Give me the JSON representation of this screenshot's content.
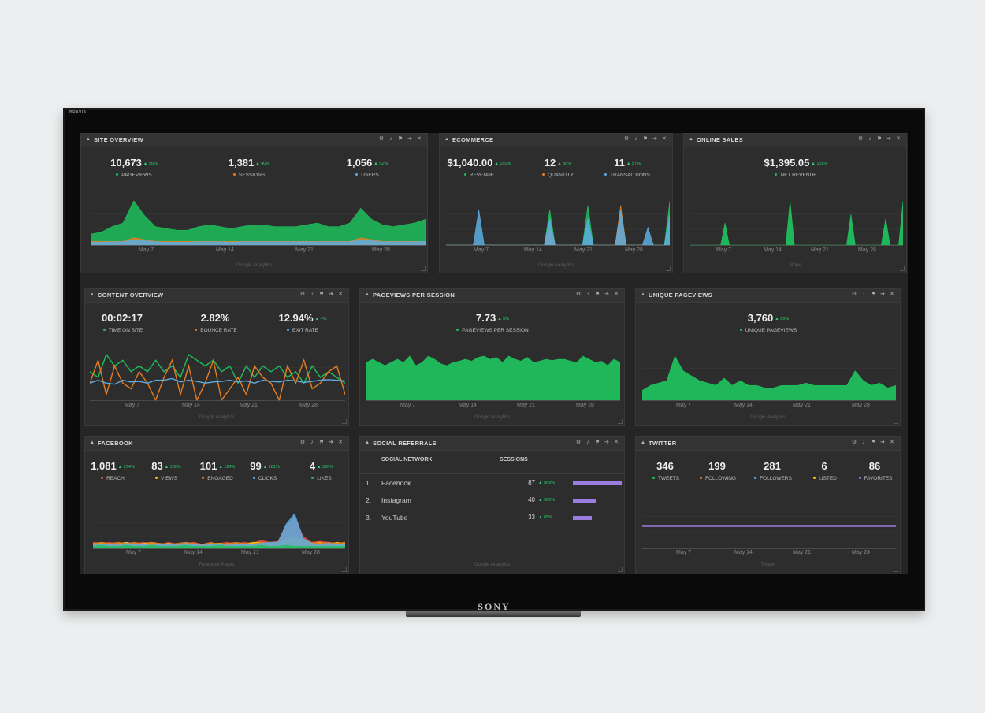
{
  "tv": {
    "brand_top": "BRAVIA",
    "brand_bottom": "SONY"
  },
  "colors": {
    "green": "#1fbf5c",
    "orange": "#e67e22",
    "blue": "#5dade2",
    "yellow": "#f1c40f",
    "purple": "#9b7de0",
    "red": "#e74c3c"
  },
  "icons": [
    "gear-icon",
    "bell-icon",
    "flag-icon",
    "arrow-right-icon",
    "close-icon"
  ],
  "site_overview": {
    "title": "SITE OVERVIEW",
    "metrics": [
      {
        "value": "10,673",
        "change": "▲ 56%",
        "label": "PAGEVIEWS"
      },
      {
        "value": "1,381",
        "change": "▲ 40%",
        "label": "SESSIONS"
      },
      {
        "value": "1,056",
        "change": "▲ 52%",
        "label": "USERS"
      }
    ],
    "x_ticks": [
      "May 7",
      "May 14",
      "May 21",
      "May 28"
    ],
    "source": "Google Analytics"
  },
  "ecommerce": {
    "title": "ECOMMERCE",
    "metrics": [
      {
        "value": "$1,040.00",
        "change": "▲ 150%",
        "label": "REVENUE"
      },
      {
        "value": "12",
        "change": "▲ 50%",
        "label": "QUANTITY"
      },
      {
        "value": "11",
        "change": "▲ 57%",
        "label": "TRANSACTIONS"
      }
    ],
    "x_ticks": [
      "May 7",
      "May 14",
      "May 21",
      "May 28"
    ],
    "source": "Google Analytics"
  },
  "online_sales": {
    "title": "ONLINE SALES",
    "metrics": [
      {
        "value": "$1,395.05",
        "change": "▲ 155%",
        "label": "NET REVENUE"
      }
    ],
    "x_ticks": [
      "May 7",
      "May 14",
      "May 21",
      "May 28"
    ],
    "source": "Stripe"
  },
  "content_overview": {
    "title": "CONTENT OVERVIEW",
    "metrics": [
      {
        "value": "00:02:17",
        "change": "",
        "label": "TIME ON SITE"
      },
      {
        "value": "2.82%",
        "change": "",
        "label": "BOUNCE RATE"
      },
      {
        "value": "12.94%",
        "change": "▲ 4%",
        "label": "EXIT RATE"
      }
    ],
    "x_ticks": [
      "May 7",
      "May 14",
      "May 21",
      "May 28"
    ],
    "source": "Google Analytics"
  },
  "pageviews_per_session": {
    "title": "PAGEVIEWS PER SESSION",
    "metrics": [
      {
        "value": "7.73",
        "change": "▲ 5%",
        "label": "PAGEVIEWS PER SESSION"
      }
    ],
    "x_ticks": [
      "May 7",
      "May 14",
      "May 21",
      "May 28"
    ],
    "source": "Google Analytics"
  },
  "unique_pageviews": {
    "title": "UNIQUE PAGEVIEWS",
    "metrics": [
      {
        "value": "3,760",
        "change": "▲ 60%",
        "label": "UNIQUE PAGEVIEWS"
      }
    ],
    "x_ticks": [
      "May 7",
      "May 14",
      "May 21",
      "May 28"
    ],
    "source": "Google Analytics"
  },
  "facebook": {
    "title": "FACEBOOK",
    "metrics": [
      {
        "value": "1,081",
        "change": "▲ 274%",
        "label": "REACH"
      },
      {
        "value": "83",
        "change": "▲ 160%",
        "label": "VIEWS"
      },
      {
        "value": "101",
        "change": "▲ 124%",
        "label": "ENGAGED"
      },
      {
        "value": "99",
        "change": "▲ 181%",
        "label": "CLICKS"
      },
      {
        "value": "4",
        "change": "▲ 300%",
        "label": "LIKES"
      }
    ],
    "x_ticks": [
      "May 7",
      "May 14",
      "May 21",
      "May 28"
    ],
    "source": "Facebook Pages"
  },
  "social_referrals": {
    "title": "SOCIAL REFERRALS",
    "col_network": "SOCIAL NETWORK",
    "col_sessions": "SESSIONS",
    "rows": [
      {
        "n": "1.",
        "name": "Facebook",
        "value": "87",
        "change": "▲ 569%",
        "share": 1.0
      },
      {
        "n": "2.",
        "name": "Instagram",
        "value": "40",
        "change": "▲ 900%",
        "share": 0.46
      },
      {
        "n": "3.",
        "name": "YouTube",
        "value": "33",
        "change": "▲ 65%",
        "share": 0.38
      }
    ],
    "source": "Google Analytics"
  },
  "twitter": {
    "title": "TWITTER",
    "metrics": [
      {
        "value": "346",
        "change": "",
        "label": "TWEETS"
      },
      {
        "value": "199",
        "change": "",
        "label": "FOLLOWING"
      },
      {
        "value": "281",
        "change": "",
        "label": "FOLLOWERS"
      },
      {
        "value": "6",
        "change": "",
        "label": "LISTED"
      },
      {
        "value": "86",
        "change": "",
        "label": "FAVORITES"
      }
    ],
    "x_ticks": [
      "May 7",
      "May 14",
      "May 21",
      "May 28"
    ],
    "source": "Twitter"
  },
  "chart_data": [
    {
      "type": "area",
      "panel": "site_overview",
      "series": [
        {
          "name": "PAGEVIEWS",
          "color": "#1fbf5c",
          "values": [
            3,
            3.5,
            5,
            6,
            12,
            8,
            5,
            4.5,
            4,
            4,
            5,
            5.5,
            5,
            4.5,
            5,
            5.5,
            5.5,
            5,
            5,
            5,
            5.5,
            6,
            5,
            5,
            6,
            10,
            7,
            5.5,
            5,
            5.5,
            6,
            7
          ]
        },
        {
          "name": "SESSIONS",
          "color": "#e67e22",
          "values": [
            1,
            1,
            1,
            1,
            2,
            1.5,
            1,
            1,
            1,
            1,
            1,
            1,
            1,
            1,
            1,
            1,
            1,
            1,
            1,
            1,
            1,
            1,
            1,
            1,
            1,
            2,
            1.5,
            1,
            1,
            1,
            1,
            1
          ]
        },
        {
          "name": "USERS",
          "color": "#5dade2",
          "values": [
            0.8,
            0.8,
            0.9,
            0.9,
            1.5,
            1.2,
            0.9,
            0.8,
            0.8,
            0.8,
            0.9,
            0.9,
            0.9,
            0.8,
            0.9,
            0.9,
            0.9,
            0.9,
            0.9,
            0.9,
            0.9,
            0.9,
            0.9,
            0.9,
            0.9,
            1.5,
            1.2,
            0.9,
            0.9,
            0.9,
            0.9,
            1
          ]
        }
      ]
    },
    {
      "type": "area",
      "panel": "ecommerce",
      "series": [
        {
          "name": "REVENUE",
          "color": "#1fbf5c",
          "values": [
            0,
            0,
            0,
            0,
            0,
            0,
            0,
            0,
            0,
            0,
            0,
            0,
            0,
            0,
            0,
            0,
            0,
            0,
            0,
            8,
            0,
            0,
            0,
            0,
            0,
            0,
            9,
            0,
            0,
            0,
            0,
            0,
            0,
            0,
            0,
            0,
            0,
            0,
            0,
            0,
            0,
            10
          ]
        },
        {
          "name": "QUANTITY",
          "color": "#e67e22",
          "values": [
            0,
            0,
            0,
            0,
            0,
            0,
            0,
            0,
            0,
            0,
            0,
            0,
            0,
            0,
            0,
            0,
            0,
            0,
            0,
            4,
            0,
            0,
            0,
            0,
            0,
            0,
            0,
            0,
            0,
            0,
            0,
            0,
            9,
            0,
            0,
            0,
            0,
            0,
            0,
            0,
            0,
            0
          ]
        },
        {
          "name": "TRANSACTIONS",
          "color": "#5dade2",
          "values": [
            0,
            0,
            0,
            0,
            0,
            0,
            8,
            0,
            0,
            0,
            0,
            0,
            0,
            0,
            0,
            0,
            0,
            0,
            0,
            6,
            0,
            0,
            0,
            0,
            0,
            0,
            6,
            0,
            0,
            0,
            0,
            0,
            8,
            0,
            0,
            0,
            0,
            4,
            0,
            0,
            0,
            7
          ]
        }
      ]
    },
    {
      "type": "area",
      "panel": "online_sales",
      "series": [
        {
          "name": "NET REVENUE",
          "color": "#1fbf5c",
          "values": [
            0,
            0,
            0,
            0,
            0,
            0,
            0,
            0,
            5,
            0,
            0,
            0,
            0,
            0,
            0,
            0,
            0,
            0,
            0,
            0,
            0,
            0,
            0,
            10,
            0,
            0,
            0,
            0,
            0,
            0,
            0,
            0,
            0,
            0,
            0,
            0,
            0,
            7,
            0,
            0,
            0,
            0,
            0,
            0,
            0,
            6,
            0,
            0,
            0,
            10
          ]
        }
      ]
    },
    {
      "type": "line",
      "panel": "content_overview",
      "series": [
        {
          "name": "TIME ON SITE",
          "color": "#1fbf5c",
          "values": [
            5,
            4,
            8,
            6,
            7,
            5,
            6,
            5,
            7,
            5,
            6,
            4,
            8,
            7,
            6,
            7,
            5,
            6,
            3,
            6,
            4,
            6,
            5,
            6,
            4,
            5,
            3,
            6,
            4,
            5,
            4,
            3
          ]
        },
        {
          "name": "BOUNCE RATE",
          "color": "#e67e22",
          "values": [
            3,
            7,
            1,
            6,
            3,
            2,
            5,
            3,
            0,
            4,
            7,
            1,
            6,
            0,
            3,
            7,
            0,
            2,
            4,
            1,
            6,
            4,
            3,
            0,
            6,
            3,
            7,
            2,
            3,
            5,
            6,
            1
          ]
        },
        {
          "name": "EXIT RATE",
          "color": "#5dade2",
          "values": [
            3,
            3.5,
            3,
            2.8,
            3.5,
            3.2,
            3.3,
            3,
            3.5,
            3.5,
            3.8,
            3.2,
            3.5,
            3.3,
            3,
            3.2,
            3.3,
            3.5,
            3.2,
            3.4,
            3,
            3.5,
            3.3,
            3.2,
            3.5,
            3.4,
            3.1,
            3.3,
            3.5,
            3.6,
            3.5,
            3.4
          ]
        }
      ]
    },
    {
      "type": "area",
      "panel": "pageviews_per_session",
      "series": [
        {
          "name": "PAGEVIEWS PER SESSION",
          "color": "#1fbf5c",
          "values": [
            6,
            6.5,
            6,
            5.5,
            6,
            6.5,
            6,
            7,
            5.5,
            6,
            7,
            6.5,
            5.8,
            5.5,
            6,
            6.2,
            6.5,
            6.2,
            6.8,
            7,
            6.5,
            6.8,
            6,
            7,
            6.5,
            6.2,
            6.8,
            6,
            6.2,
            6.5,
            6.3,
            6.5,
            6.5,
            6.2,
            6,
            7,
            6.5,
            6,
            6.2,
            5.5,
            6.5,
            6
          ]
        }
      ]
    },
    {
      "type": "area",
      "panel": "unique_pageviews",
      "series": [
        {
          "name": "UNIQUE PAGEVIEWS",
          "color": "#1fbf5c",
          "values": [
            2,
            3,
            3.5,
            4,
            9,
            6,
            5,
            4,
            3.5,
            3,
            4.5,
            3,
            4,
            3,
            3,
            2.5,
            2.5,
            3,
            3,
            3,
            3.5,
            3,
            3,
            3,
            3,
            3,
            6,
            4,
            3,
            3.5,
            2.5,
            3
          ]
        }
      ]
    },
    {
      "type": "area",
      "panel": "facebook",
      "series": [
        {
          "name": "REACH",
          "color": "#e74c3c",
          "values": [
            3,
            2.5,
            3,
            2,
            3,
            2.5,
            3,
            2.5,
            2,
            3,
            2,
            2.5,
            3,
            2,
            2,
            2.5,
            3,
            2,
            3,
            2.5,
            4,
            3,
            3.5,
            11,
            15,
            6,
            3,
            3.5,
            3,
            2.5,
            3
          ]
        },
        {
          "name": "VIEWS",
          "color": "#f1c40f",
          "values": [
            2,
            3,
            2,
            2.5,
            3,
            2,
            2.5,
            3,
            2,
            2.5,
            2,
            2.5,
            2,
            2,
            2.5,
            2.5,
            2,
            2.5,
            2,
            3,
            3,
            2.5,
            2,
            4,
            5,
            3,
            2.5,
            3,
            2,
            3,
            2.5
          ]
        },
        {
          "name": "ENGAGED",
          "color": "#e67e22",
          "values": [
            2.5,
            3,
            2.5,
            3,
            2.5,
            3,
            2,
            3,
            2.5,
            2,
            2.5,
            3,
            2.5,
            2,
            3,
            2,
            2.5,
            3,
            2.5,
            2,
            3,
            2.5,
            3,
            5,
            6,
            4,
            3,
            2.5,
            3,
            2.5,
            3
          ]
        },
        {
          "name": "CLICKS",
          "color": "#5dade2",
          "values": [
            1.5,
            2,
            2,
            1.5,
            2.5,
            2,
            2,
            1.5,
            2,
            2,
            1.5,
            2.5,
            2,
            1.5,
            2,
            2,
            1.5,
            2,
            2,
            2,
            2.5,
            3,
            3,
            12,
            17,
            5,
            2.5,
            2,
            2.5,
            2,
            2
          ]
        },
        {
          "name": "LIKES",
          "color": "#1fbf5c",
          "values": [
            1,
            1.5,
            1,
            1,
            1.5,
            1,
            1,
            1.5,
            1,
            1,
            1,
            1.5,
            1,
            1,
            1,
            1.5,
            1,
            1,
            1,
            1,
            1.5,
            1,
            1,
            1.5,
            1,
            1,
            1,
            1,
            1,
            1,
            1
          ]
        }
      ]
    },
    {
      "type": "line",
      "panel": "twitter",
      "series": [
        {
          "name": "FOLLOWERS",
          "color": "#9b7de0",
          "values": [
            5,
            5,
            5,
            5,
            5,
            5,
            5,
            5,
            5,
            5,
            5,
            5,
            5,
            5,
            5,
            5,
            5,
            5,
            5,
            5
          ]
        }
      ]
    }
  ]
}
